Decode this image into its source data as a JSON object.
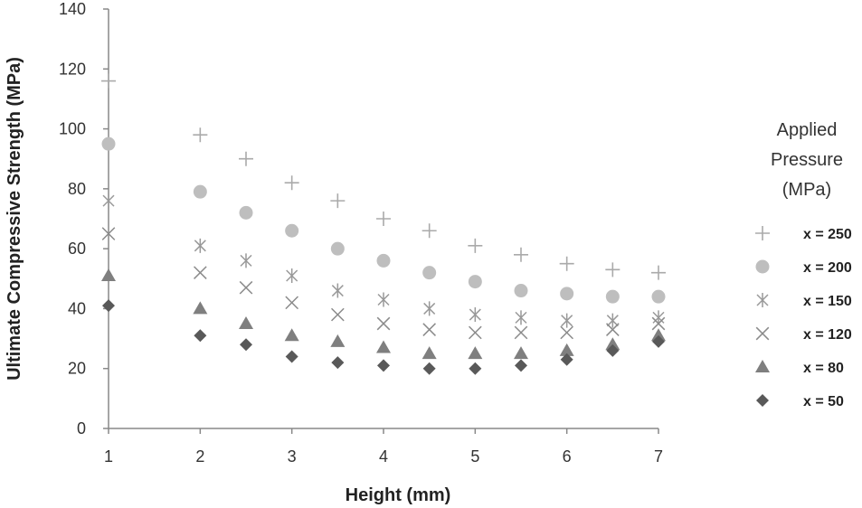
{
  "chart_data": {
    "type": "scatter",
    "title": "",
    "xlabel": "Height (mm)",
    "ylabel": "Ultimate Compressive Strength (MPa)",
    "xlim": [
      1,
      7
    ],
    "ylim": [
      0,
      140
    ],
    "xticks": [
      1,
      2,
      3,
      4,
      5,
      6,
      7
    ],
    "yticks": [
      0,
      20,
      40,
      60,
      80,
      100,
      120,
      140
    ],
    "grid": false,
    "legend_title": [
      "Applied",
      "Pressure",
      "(MPa)"
    ],
    "legend_position": "right",
    "x": [
      1,
      2,
      2.5,
      3,
      3.5,
      4,
      4.5,
      5,
      5.5,
      6,
      6.5,
      7
    ],
    "series": [
      {
        "name": "x = 250",
        "marker": "plus",
        "color": "#aaaaaa",
        "values": [
          116,
          98,
          90,
          82,
          76,
          70,
          66,
          61,
          58,
          55,
          53,
          52
        ]
      },
      {
        "name": "x = 200",
        "marker": "circle",
        "color": "#bebebe",
        "values": [
          95,
          79,
          72,
          66,
          60,
          56,
          52,
          49,
          46,
          45,
          44,
          44
        ]
      },
      {
        "name": "x = 150",
        "marker": "asterisk",
        "color": "#999999",
        "values": [
          76,
          61,
          56,
          51,
          46,
          43,
          40,
          38,
          37,
          36,
          36,
          37
        ]
      },
      {
        "name": "x = 120",
        "marker": "cross",
        "color": "#8a8a8a",
        "values": [
          65,
          52,
          47,
          42,
          38,
          35,
          33,
          32,
          32,
          32,
          33,
          35
        ]
      },
      {
        "name": "x = 80",
        "marker": "triangle",
        "color": "#7f7f7f",
        "values": [
          51,
          40,
          35,
          31,
          29,
          27,
          25,
          25,
          25,
          26,
          28,
          31
        ]
      },
      {
        "name": "x = 50",
        "marker": "diamond",
        "color": "#595959",
        "values": [
          41,
          31,
          28,
          24,
          22,
          21,
          20,
          20,
          21,
          23,
          26,
          29
        ]
      }
    ]
  }
}
